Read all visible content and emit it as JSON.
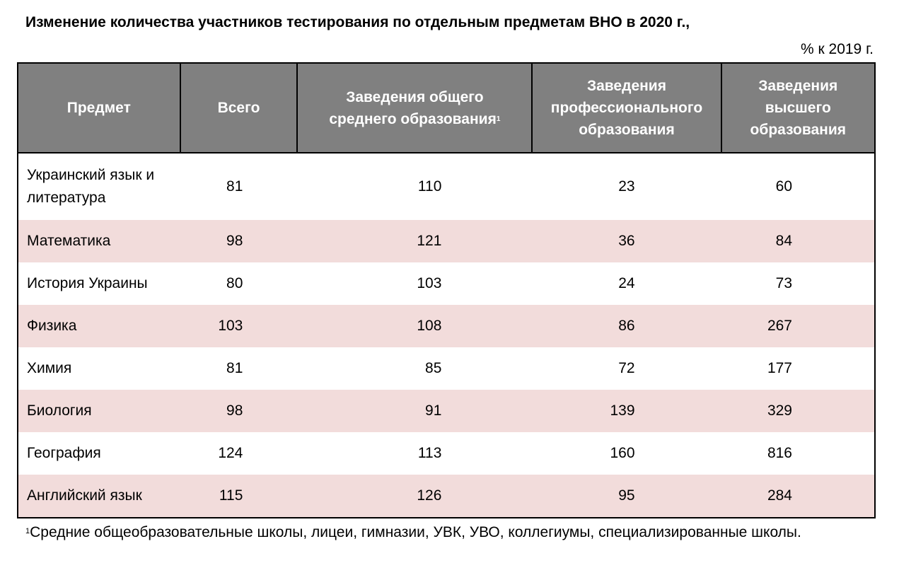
{
  "title": "Изменение количества участников тестирования по отдельным предметам ВНО в 2020 г.,",
  "unit": "% к 2019 г.",
  "headers": [
    "Предмет",
    "Всего",
    "Заведения общего среднего образования",
    "Заведения профессионального образования",
    "Заведения высшего образования"
  ],
  "header_footnote_mark": "1",
  "rows": [
    {
      "subject": "Украинский язык и литература",
      "values": [
        "81",
        "110",
        "23",
        "60"
      ]
    },
    {
      "subject": "Математика",
      "values": [
        "98",
        "121",
        "36",
        "84"
      ]
    },
    {
      "subject": "История Украины",
      "values": [
        "80",
        "103",
        "24",
        "73"
      ]
    },
    {
      "subject": "Физика",
      "values": [
        "103",
        "108",
        "86",
        "267"
      ]
    },
    {
      "subject": "Химия",
      "values": [
        "81",
        "85",
        "72",
        "177"
      ]
    },
    {
      "subject": "Биология",
      "values": [
        "98",
        "91",
        "139",
        "329"
      ]
    },
    {
      "subject": "География",
      "values": [
        "124",
        "113",
        "160",
        "816"
      ]
    },
    {
      "subject": "Английский язык",
      "values": [
        "115",
        "126",
        "95",
        "284"
      ]
    }
  ],
  "footnote": {
    "mark": "1",
    "text": "Средние общеобразовательные школы, лицеи, гимназии, УВК, УВО, коллегиумы, специализированные школы."
  },
  "colors": {
    "header_bg": "#808080",
    "stripe": "#f2dcdb"
  }
}
